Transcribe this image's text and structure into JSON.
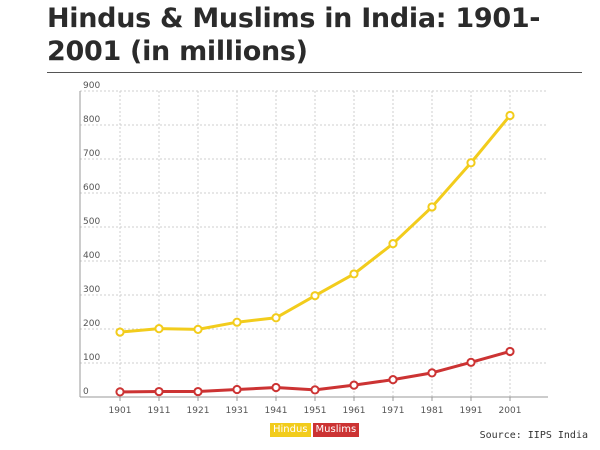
{
  "chart_data": {
    "type": "line",
    "title": "Hindus & Muslims in India: 1901-2001 (in millions)",
    "xlabel": "",
    "ylabel": "",
    "x": [
      "1901",
      "1911",
      "1921",
      "1931",
      "1941",
      "1951",
      "1961",
      "1971",
      "1981",
      "1991",
      "2001"
    ],
    "ylim": [
      0,
      900
    ],
    "yticks": [
      0,
      100,
      200,
      300,
      400,
      500,
      600,
      700,
      800,
      900
    ],
    "grid": true,
    "legend_position": "bottom-center",
    "series": [
      {
        "name": "Hindus",
        "color": "#f2cc1c",
        "values": [
          191,
          201,
          199,
          220,
          233,
          298,
          362,
          451,
          559,
          689,
          828
        ]
      },
      {
        "name": "Muslims",
        "color": "#cc3333",
        "values": [
          15,
          16,
          16,
          22,
          28,
          21,
          35,
          51,
          71,
          102,
          134
        ]
      }
    ]
  },
  "source": "Source: IIPS India"
}
